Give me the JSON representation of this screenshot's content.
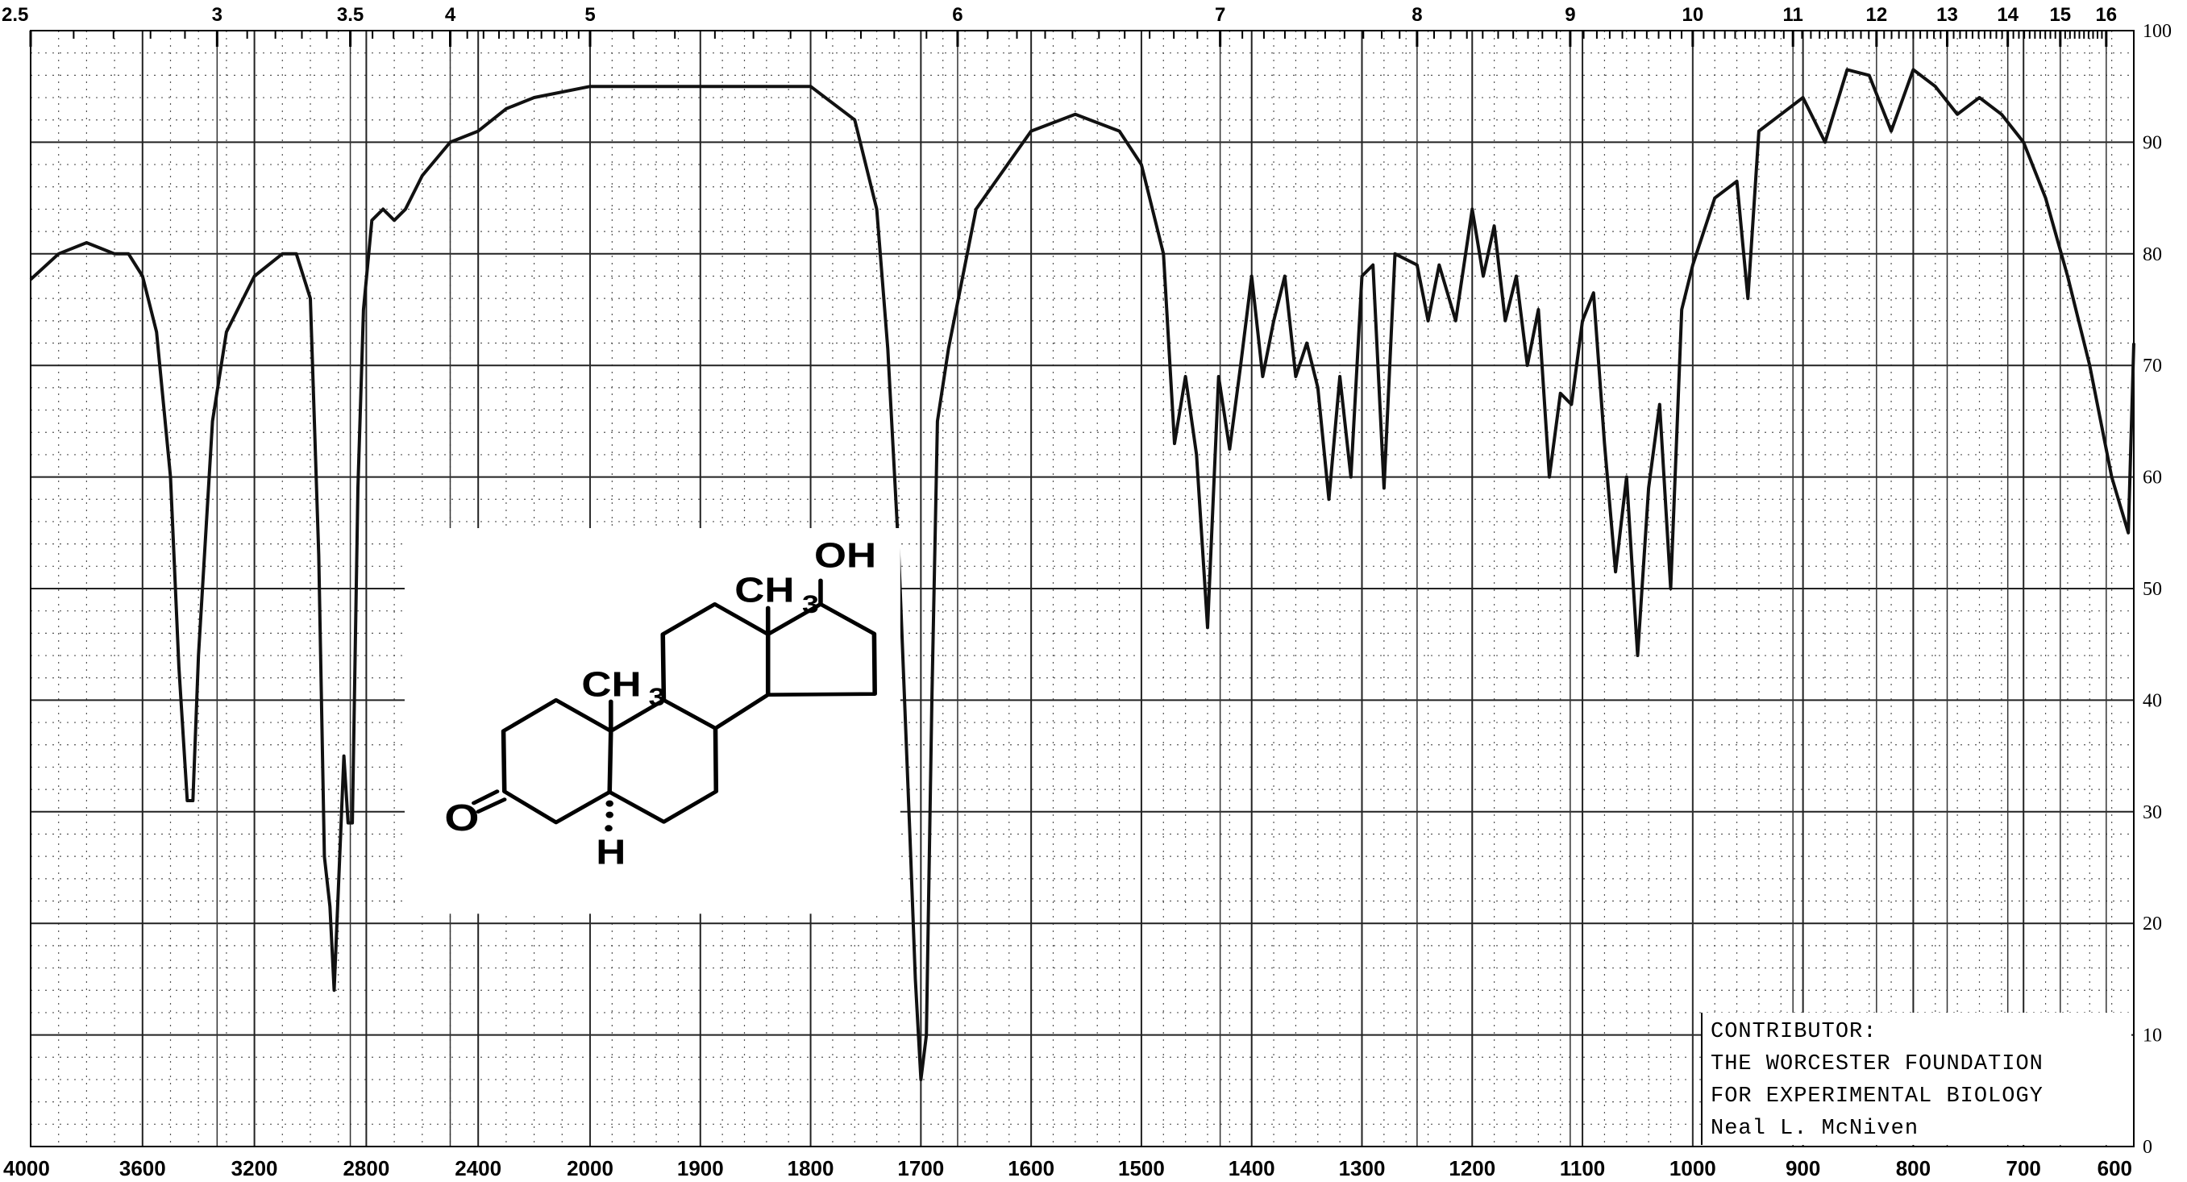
{
  "chart_data": {
    "type": "line",
    "title": "",
    "xlabel": "",
    "ylabel": "",
    "x_axis": {
      "unit": "wavenumber cm-1",
      "range": [
        4000,
        600
      ],
      "scale": "piecewise linear, expanded below 2000",
      "tick_labels": [
        "4000",
        "3600",
        "3200",
        "2800",
        "2400",
        "2000",
        "1900",
        "1800",
        "1700",
        "1600",
        "1500",
        "1400",
        "1300",
        "1200",
        "1100",
        "1000",
        "900",
        "800",
        "700",
        "600"
      ]
    },
    "top_axis": {
      "unit": "microns",
      "tick_labels": [
        "2.5",
        "3",
        "3.5",
        "4",
        "5",
        "6",
        "7",
        "8",
        "9",
        "10",
        "11",
        "12",
        "13",
        "14",
        "15",
        "16"
      ]
    },
    "y_axis": {
      "range": [
        0,
        100
      ],
      "tick_labels": [
        "100",
        "90",
        "80",
        "70",
        "60",
        "50",
        "40",
        "30",
        "20",
        "10",
        "0"
      ],
      "side": "right"
    },
    "grid": true,
    "series": [
      {
        "color": "#111111",
        "x": [
          4000,
          3900,
          3800,
          3700,
          3650,
          3600,
          3550,
          3500,
          3470,
          3440,
          3420,
          3400,
          3350,
          3300,
          3200,
          3100,
          3050,
          3000,
          2970,
          2950,
          2930,
          2915,
          2900,
          2880,
          2865,
          2850,
          2830,
          2810,
          2780,
          2740,
          2700,
          2660,
          2600,
          2500,
          2400,
          2300,
          2200,
          2000,
          1900,
          1800,
          1760,
          1740,
          1730,
          1720,
          1710,
          1705,
          1700,
          1695,
          1690,
          1685,
          1675,
          1650,
          1600,
          1560,
          1520,
          1500,
          1480,
          1470,
          1460,
          1450,
          1440,
          1430,
          1420,
          1410,
          1400,
          1390,
          1380,
          1370,
          1360,
          1350,
          1340,
          1330,
          1320,
          1310,
          1300,
          1290,
          1280,
          1270,
          1250,
          1240,
          1230,
          1215,
          1200,
          1190,
          1180,
          1170,
          1160,
          1150,
          1140,
          1130,
          1120,
          1110,
          1100,
          1090,
          1080,
          1070,
          1060,
          1050,
          1040,
          1030,
          1020,
          1010,
          1000,
          980,
          960,
          950,
          940,
          920,
          900,
          880,
          860,
          840,
          820,
          800,
          780,
          760,
          740,
          720,
          700,
          680,
          660,
          640,
          620,
          605,
          600
        ],
        "y": [
          77.7,
          80,
          81,
          80,
          80,
          78,
          73,
          60,
          43,
          31,
          31,
          44,
          65,
          73,
          78,
          80,
          80,
          76,
          53,
          26,
          21.5,
          14,
          23,
          35,
          29,
          29,
          59,
          75,
          83,
          84,
          83,
          84,
          87,
          90,
          91,
          93,
          94,
          95,
          95,
          95,
          92,
          84,
          71.5,
          53,
          28,
          15,
          6,
          10,
          40,
          65,
          71.5,
          84,
          91,
          92.5,
          91,
          88,
          80,
          63,
          69,
          62,
          46.5,
          69,
          62.5,
          70,
          78,
          69,
          74,
          78,
          69,
          72,
          68,
          58,
          69,
          60,
          78,
          79,
          59,
          80,
          79,
          74,
          79,
          74,
          84,
          78,
          82.5,
          74,
          78,
          70,
          75,
          60,
          67.5,
          66.5,
          74,
          76.5,
          63,
          51.5,
          60,
          44,
          59,
          66.5,
          50,
          75,
          79,
          85,
          86.5,
          76,
          91,
          92.5,
          94,
          90,
          96.5,
          96,
          91,
          96.5,
          95,
          92.5,
          94,
          92.5,
          90,
          85,
          78,
          70,
          60,
          55,
          72
        ]
      }
    ]
  },
  "structure": {
    "labels": {
      "oxygen": "O",
      "methyl_a": "CH",
      "methyl_a_sub": "3",
      "methyl_b": "CH",
      "methyl_b_sub": "3",
      "hydroxyl": "OH",
      "hydrogen": "H"
    }
  },
  "contributor": {
    "lines": [
      "CONTRIBUTOR:",
      "THE WORCESTER FOUNDATION",
      "FOR EXPERIMENTAL BIOLOGY",
      "Neal L. McNiven"
    ]
  }
}
